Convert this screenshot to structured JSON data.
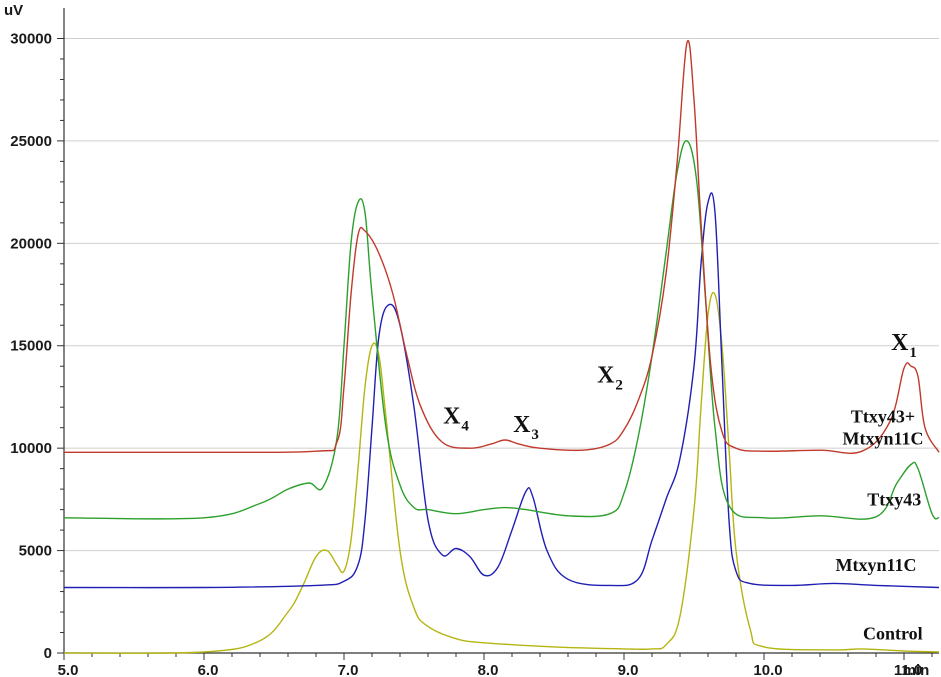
{
  "chart_data": {
    "type": "line",
    "xlabel": "min",
    "ylabel": "uV",
    "xlim": [
      5.0,
      11.25
    ],
    "ylim": [
      0,
      31000
    ],
    "x_ticks": [
      5.0,
      6.0,
      7.0,
      8.0,
      9.0,
      10.0,
      11.0
    ],
    "x_tick_labels": [
      "5.0",
      "6.0",
      "7.0",
      "8.0",
      "9.0",
      "10.0",
      "11.0"
    ],
    "y_ticks": [
      0,
      5000,
      10000,
      15000,
      20000,
      25000,
      30000
    ],
    "y_tick_labels": [
      "0",
      "5000",
      "10000",
      "15000",
      "20000",
      "25000",
      "30000"
    ],
    "grid": "horizontal",
    "series": [
      {
        "name": "Ttxy43+ Mtxyn11C",
        "label_lines": [
          "Ttxy43+",
          "Mtxyn11C"
        ],
        "color": "#c0392b",
        "x": [
          5.0,
          6.0,
          6.8,
          6.95,
          7.0,
          7.05,
          7.1,
          7.15,
          7.25,
          7.35,
          7.45,
          7.55,
          7.7,
          7.9,
          8.05,
          8.15,
          8.25,
          8.4,
          8.7,
          8.9,
          9.0,
          9.1,
          9.2,
          9.3,
          9.38,
          9.45,
          9.5,
          9.55,
          9.62,
          9.7,
          9.8,
          10.0,
          10.4,
          10.7,
          10.9,
          11.0,
          11.05,
          11.1,
          11.15,
          11.25
        ],
        "y": [
          9800,
          9800,
          9850,
          10300,
          13000,
          17500,
          20400,
          20600,
          19500,
          17500,
          14500,
          12000,
          10300,
          10000,
          10200,
          10400,
          10200,
          10000,
          9900,
          10200,
          10900,
          12300,
          14500,
          18500,
          24000,
          29800,
          27000,
          21000,
          14000,
          10800,
          10000,
          9850,
          9900,
          9850,
          11300,
          13900,
          14000,
          13500,
          11000,
          9800
        ]
      },
      {
        "name": "Ttxy43",
        "color": "#2ca02c",
        "x": [
          5.0,
          6.0,
          6.4,
          6.6,
          6.75,
          6.85,
          6.95,
          7.0,
          7.05,
          7.1,
          7.15,
          7.2,
          7.3,
          7.4,
          7.5,
          7.6,
          7.8,
          8.0,
          8.15,
          8.3,
          8.6,
          8.9,
          9.0,
          9.1,
          9.2,
          9.3,
          9.38,
          9.45,
          9.52,
          9.58,
          9.65,
          9.75,
          10.0,
          10.4,
          10.8,
          10.95,
          11.05,
          11.1,
          11.2,
          11.25
        ],
        "y": [
          6600,
          6600,
          7300,
          8000,
          8300,
          8100,
          10500,
          15000,
          20000,
          22000,
          21500,
          17500,
          11000,
          8200,
          7100,
          7000,
          6800,
          7000,
          7100,
          7000,
          6700,
          6800,
          7800,
          10500,
          14500,
          19500,
          23500,
          25000,
          23000,
          17500,
          11000,
          7200,
          6600,
          6700,
          6650,
          8300,
          9200,
          9000,
          6800,
          6600
        ]
      },
      {
        "name": "Mtxyn11C",
        "color": "#1f1fb4",
        "x": [
          5.0,
          6.0,
          6.8,
          7.0,
          7.1,
          7.15,
          7.2,
          7.25,
          7.32,
          7.4,
          7.5,
          7.6,
          7.7,
          7.8,
          7.9,
          8.0,
          8.1,
          8.2,
          8.3,
          8.35,
          8.45,
          8.6,
          8.9,
          9.1,
          9.2,
          9.3,
          9.4,
          9.5,
          9.55,
          9.6,
          9.65,
          9.7,
          9.75,
          9.8,
          9.9,
          10.2,
          10.5,
          10.8,
          11.25
        ],
        "y": [
          3200,
          3200,
          3300,
          3500,
          4300,
          6500,
          11000,
          15500,
          17000,
          16000,
          12000,
          6500,
          4800,
          5100,
          4700,
          3800,
          4200,
          6000,
          7900,
          7600,
          5000,
          3600,
          3300,
          3600,
          5500,
          7500,
          9500,
          14000,
          19000,
          22000,
          21500,
          14000,
          6500,
          4000,
          3400,
          3300,
          3400,
          3300,
          3200
        ]
      },
      {
        "name": "Control",
        "color": "#b5b512",
        "x": [
          5.0,
          6.0,
          6.4,
          6.6,
          6.7,
          6.8,
          6.88,
          6.95,
          7.0,
          7.05,
          7.1,
          7.15,
          7.2,
          7.25,
          7.3,
          7.4,
          7.5,
          7.6,
          7.8,
          8.0,
          8.5,
          9.0,
          9.2,
          9.3,
          9.4,
          9.5,
          9.55,
          9.6,
          9.65,
          9.7,
          9.75,
          9.8,
          9.9,
          10.0,
          10.5,
          10.7,
          11.0,
          11.25
        ],
        "y": [
          0,
          50,
          600,
          2000,
          3200,
          4700,
          5000,
          4300,
          4000,
          5500,
          9000,
          13000,
          15000,
          14500,
          11500,
          5000,
          2200,
          1300,
          700,
          500,
          300,
          200,
          200,
          400,
          1800,
          7000,
          12000,
          16500,
          17500,
          15000,
          10000,
          5000,
          1200,
          300,
          150,
          200,
          100,
          50
        ]
      }
    ],
    "annotations": [
      {
        "text": "X",
        "sub": "4",
        "x": 7.8,
        "y": 11200
      },
      {
        "text": "X",
        "sub": "3",
        "x": 8.3,
        "y": 10800
      },
      {
        "text": "X",
        "sub": "2",
        "x": 8.9,
        "y": 13200
      },
      {
        "text": "X",
        "sub": "1",
        "x": 11.0,
        "y": 14800
      }
    ],
    "series_label_positions": [
      {
        "series": 0,
        "x": 10.85,
        "y": 11000
      },
      {
        "series": 1,
        "x": 10.93,
        "y": 7500
      },
      {
        "series": 2,
        "x": 10.8,
        "y": 4300
      },
      {
        "series": 3,
        "x": 10.92,
        "y": 950
      }
    ]
  }
}
